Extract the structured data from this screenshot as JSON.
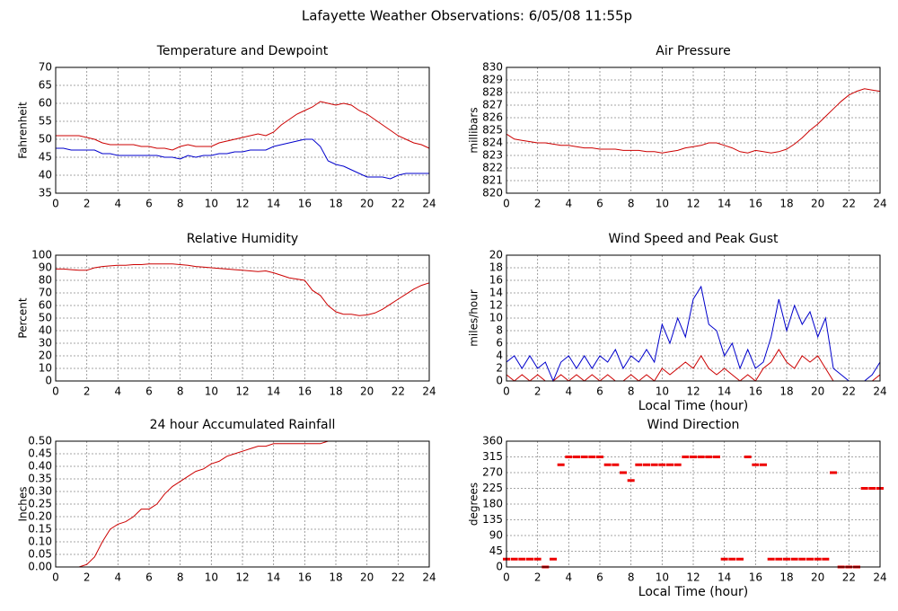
{
  "title": "Lafayette Weather Observations: 6/05/08 11:55p",
  "chart_data": [
    {
      "type": "line",
      "title": "Temperature and Dewpoint",
      "ylabel": "Fahrenheit",
      "x": [
        0,
        0.5,
        1,
        1.5,
        2,
        2.5,
        3,
        3.5,
        4,
        4.5,
        5,
        5.5,
        6,
        6.5,
        7,
        7.5,
        8,
        8.5,
        9,
        9.5,
        10,
        10.5,
        11,
        11.5,
        12,
        12.5,
        13,
        13.5,
        14,
        14.5,
        15,
        15.5,
        16,
        16.5,
        17,
        17.5,
        18,
        18.5,
        19,
        19.5,
        20,
        20.5,
        21,
        21.5,
        22,
        22.5,
        23,
        23.5,
        24
      ],
      "series": [
        {
          "color": "#cc0000",
          "values": [
            51,
            51,
            51,
            51,
            50.5,
            50,
            49,
            48.5,
            48.5,
            48.5,
            48.5,
            48,
            48,
            47.5,
            47.5,
            47,
            48,
            48.5,
            48,
            48,
            48,
            49,
            49.5,
            50,
            50.5,
            51,
            51.5,
            51,
            52,
            54,
            55.5,
            57,
            58,
            59,
            60.5,
            60,
            59.5,
            60,
            59.5,
            58,
            57,
            55.5,
            54,
            52.5,
            51,
            50,
            49,
            48.5,
            47.5
          ]
        },
        {
          "color": "#0000cc",
          "values": [
            47.5,
            47.5,
            47,
            47,
            47,
            47,
            46,
            46,
            45.5,
            45.5,
            45.5,
            45.5,
            45.5,
            45.5,
            45,
            45,
            44.5,
            45.5,
            45,
            45.5,
            45.5,
            46,
            46,
            46.5,
            46.5,
            47,
            47,
            47,
            48,
            48.5,
            49,
            49.5,
            50,
            50,
            48,
            44,
            43,
            42.5,
            41.5,
            40.5,
            39.5,
            39.5,
            39.5,
            39,
            40,
            40.5,
            40.5,
            40.5,
            40.5
          ]
        }
      ],
      "xlim": [
        0,
        24
      ],
      "xticks": [
        0,
        2,
        4,
        6,
        8,
        10,
        12,
        14,
        16,
        18,
        20,
        22,
        24
      ],
      "ylim": [
        35,
        70
      ],
      "yticks": [
        35,
        40,
        45,
        50,
        55,
        60,
        65,
        70
      ],
      "grid": true
    },
    {
      "type": "line",
      "title": "Air Pressure",
      "ylabel": "millibars",
      "x": [
        0,
        0.5,
        1,
        1.5,
        2,
        2.5,
        3,
        3.5,
        4,
        4.5,
        5,
        5.5,
        6,
        6.5,
        7,
        7.5,
        8,
        8.5,
        9,
        9.5,
        10,
        10.5,
        11,
        11.5,
        12,
        12.5,
        13,
        13.5,
        14,
        14.5,
        15,
        15.5,
        16,
        16.5,
        17,
        17.5,
        18,
        18.5,
        19,
        19.5,
        20,
        20.5,
        21,
        21.5,
        22,
        22.5,
        23,
        23.5,
        24
      ],
      "series": [
        {
          "color": "#cc0000",
          "values": [
            824.7,
            824.3,
            824.2,
            824.1,
            824.0,
            824.0,
            823.9,
            823.8,
            823.8,
            823.7,
            823.6,
            823.6,
            823.5,
            823.5,
            823.5,
            823.4,
            823.4,
            823.4,
            823.3,
            823.3,
            823.2,
            823.3,
            823.4,
            823.6,
            823.7,
            823.8,
            824.0,
            824.0,
            823.8,
            823.6,
            823.3,
            823.2,
            823.4,
            823.3,
            823.2,
            823.3,
            823.5,
            823.9,
            824.4,
            825.0,
            825.5,
            826.1,
            826.7,
            827.3,
            827.8,
            828.1,
            828.3,
            828.2,
            828.1
          ]
        }
      ],
      "xlim": [
        0,
        24
      ],
      "xticks": [
        0,
        2,
        4,
        6,
        8,
        10,
        12,
        14,
        16,
        18,
        20,
        22,
        24
      ],
      "ylim": [
        820,
        830
      ],
      "yticks": [
        820,
        821,
        822,
        823,
        824,
        825,
        826,
        827,
        828,
        829,
        830
      ],
      "grid": true
    },
    {
      "type": "line",
      "title": "Relative Humidity",
      "ylabel": "Percent",
      "x": [
        0,
        0.5,
        1,
        1.5,
        2,
        2.5,
        3,
        3.5,
        4,
        4.5,
        5,
        5.5,
        6,
        6.5,
        7,
        7.5,
        8,
        8.5,
        9,
        9.5,
        10,
        10.5,
        11,
        11.5,
        12,
        12.5,
        13,
        13.5,
        14,
        14.5,
        15,
        15.5,
        16,
        16.5,
        17,
        17.5,
        18,
        18.5,
        19,
        19.5,
        20,
        20.5,
        21,
        21.5,
        22,
        22.5,
        23,
        23.5,
        24
      ],
      "series": [
        {
          "color": "#cc0000",
          "values": [
            89,
            89,
            88.5,
            88,
            88,
            90,
            91,
            91.5,
            92,
            92,
            92.5,
            92.5,
            93,
            93,
            93,
            93,
            92.5,
            92,
            91,
            90.5,
            90,
            89.5,
            89,
            88.5,
            88,
            87.5,
            87,
            87.5,
            86,
            84,
            82,
            81,
            80,
            72,
            68,
            60,
            55,
            53,
            53,
            52,
            52.5,
            54,
            57,
            61,
            65,
            69,
            73,
            76,
            78
          ]
        }
      ],
      "xlim": [
        0,
        24
      ],
      "xticks": [
        0,
        2,
        4,
        6,
        8,
        10,
        12,
        14,
        16,
        18,
        20,
        22,
        24
      ],
      "ylim": [
        0,
        100
      ],
      "yticks": [
        0,
        10,
        20,
        30,
        40,
        50,
        60,
        70,
        80,
        90,
        100
      ],
      "grid": true
    },
    {
      "type": "line",
      "title": "Wind Speed and Peak Gust",
      "ylabel": "miles/hour",
      "xlabel": "Local Time (hour)",
      "x": [
        0,
        0.5,
        1,
        1.5,
        2,
        2.5,
        3,
        3.5,
        4,
        4.5,
        5,
        5.5,
        6,
        6.5,
        7,
        7.5,
        8,
        8.5,
        9,
        9.5,
        10,
        10.5,
        11,
        11.5,
        12,
        12.5,
        13,
        13.5,
        14,
        14.5,
        15,
        15.5,
        16,
        16.5,
        17,
        17.5,
        18,
        18.5,
        19,
        19.5,
        20,
        20.5,
        21,
        21.5,
        22,
        22.5,
        23,
        23.5,
        24
      ],
      "series": [
        {
          "color": "#0000cc",
          "values": [
            3,
            4,
            2,
            4,
            2,
            3,
            0,
            3,
            4,
            2,
            4,
            2,
            4,
            3,
            5,
            2,
            4,
            3,
            5,
            3,
            9,
            6,
            10,
            7,
            13,
            15,
            9,
            8,
            4,
            6,
            2,
            5,
            2,
            3,
            7,
            13,
            8,
            12,
            9,
            11,
            7,
            10,
            2,
            1,
            0,
            0,
            0,
            1,
            3
          ]
        },
        {
          "color": "#cc0000",
          "values": [
            1,
            0,
            1,
            0,
            1,
            0,
            0,
            1,
            0,
            1,
            0,
            1,
            0,
            1,
            0,
            0,
            1,
            0,
            1,
            0,
            2,
            1,
            2,
            3,
            2,
            4,
            2,
            1,
            2,
            1,
            0,
            1,
            0,
            2,
            3,
            5,
            3,
            2,
            4,
            3,
            4,
            2,
            0,
            0,
            0,
            0,
            0,
            0,
            1
          ]
        }
      ],
      "xlim": [
        0,
        24
      ],
      "xticks": [
        0,
        2,
        4,
        6,
        8,
        10,
        12,
        14,
        16,
        18,
        20,
        22,
        24
      ],
      "ylim": [
        0,
        20
      ],
      "yticks": [
        0,
        2,
        4,
        6,
        8,
        10,
        12,
        14,
        16,
        18,
        20
      ],
      "grid": true
    },
    {
      "type": "line",
      "title": "24 hour Accumulated Rainfall",
      "ylabel": "Inches",
      "x": [
        0,
        1,
        1.5,
        2,
        2.5,
        3,
        3.5,
        4,
        4.5,
        5,
        5.5,
        6,
        6.5,
        7,
        7.5,
        8,
        8.5,
        9,
        9.5,
        10,
        10.5,
        11,
        11.5,
        12,
        12.5,
        13,
        13.5,
        14,
        15,
        16,
        17,
        17.5,
        18,
        20,
        22,
        24
      ],
      "series": [
        {
          "color": "#cc0000",
          "values": [
            0,
            0,
            0,
            0.01,
            0.04,
            0.1,
            0.15,
            0.17,
            0.18,
            0.2,
            0.23,
            0.23,
            0.25,
            0.29,
            0.32,
            0.34,
            0.36,
            0.38,
            0.39,
            0.41,
            0.42,
            0.44,
            0.45,
            0.46,
            0.47,
            0.48,
            0.48,
            0.49,
            0.49,
            0.49,
            0.49,
            0.5,
            0.5,
            0.5,
            0.5,
            0.5
          ]
        }
      ],
      "xlim": [
        0,
        24
      ],
      "xticks": [
        0,
        2,
        4,
        6,
        8,
        10,
        12,
        14,
        16,
        18,
        20,
        22,
        24
      ],
      "ylim": [
        0,
        0.5
      ],
      "yticks": [
        {
          "value": 0,
          "label": "0.00"
        },
        {
          "value": 0.05,
          "label": "0.05"
        },
        {
          "value": 0.1,
          "label": "0.10"
        },
        {
          "value": 0.15,
          "label": "0.15"
        },
        {
          "value": 0.2,
          "label": "0.20"
        },
        {
          "value": 0.25,
          "label": "0.25"
        },
        {
          "value": 0.3,
          "label": "0.30"
        },
        {
          "value": 0.35,
          "label": "0.35"
        },
        {
          "value": 0.4,
          "label": "0.40"
        },
        {
          "value": 0.45,
          "label": "0.45"
        },
        {
          "value": 0.5,
          "label": "0.50"
        }
      ],
      "grid": true
    },
    {
      "type": "scatter",
      "title": "Wind Direction",
      "ylabel": "degrees",
      "xlabel": "Local Time (hour)",
      "x": [
        0,
        0.5,
        1,
        1.5,
        2,
        2.5,
        3,
        3.5,
        4,
        4.5,
        5,
        5.5,
        6,
        6.5,
        7,
        7.5,
        8,
        8.5,
        9,
        9.5,
        10,
        10.5,
        11,
        11.5,
        12,
        12.5,
        13,
        13.5,
        14,
        14.5,
        15,
        15.5,
        16,
        16.5,
        17,
        17.5,
        18,
        18.5,
        19,
        19.5,
        20,
        20.5,
        21,
        21.5,
        22,
        22.5,
        23,
        23.5,
        24
      ],
      "series": [
        {
          "color": "#ee0000",
          "values": [
            22.5,
            22.5,
            22.5,
            22.5,
            22.5,
            0,
            22.5,
            292.5,
            315,
            315,
            315,
            315,
            315,
            292.5,
            292.5,
            270,
            247.5,
            292.5,
            292.5,
            292.5,
            292.5,
            292.5,
            292.5,
            315,
            315,
            315,
            315,
            315,
            22.5,
            22.5,
            22.5,
            315,
            292.5,
            292.5,
            22.5,
            22.5,
            22.5,
            22.5,
            22.5,
            22.5,
            22.5,
            22.5,
            270,
            0,
            0,
            0,
            225,
            225,
            225
          ]
        }
      ],
      "xlim": [
        0,
        24
      ],
      "xticks": [
        0,
        2,
        4,
        6,
        8,
        10,
        12,
        14,
        16,
        18,
        20,
        22,
        24
      ],
      "ylim": [
        0,
        360
      ],
      "yticks": [
        0,
        45,
        90,
        135,
        180,
        225,
        270,
        315,
        360
      ],
      "grid": true
    }
  ]
}
